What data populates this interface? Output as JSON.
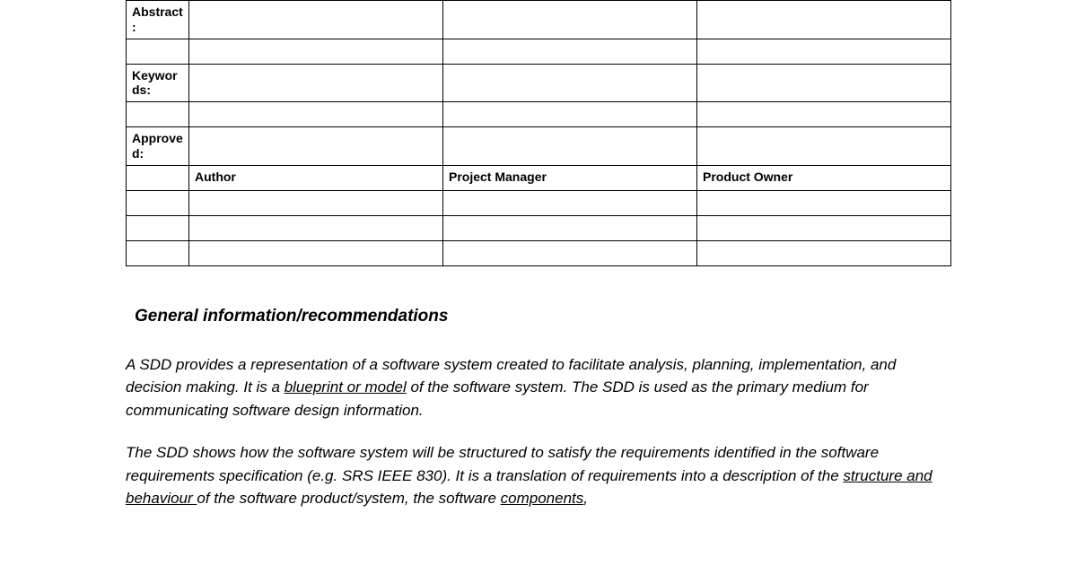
{
  "table": {
    "labels": {
      "abstract": "Abstract:",
      "keywords": "Keywords:",
      "approved": "Approved:"
    },
    "roleHeaders": {
      "author": "Author",
      "projectManager": "Project Manager",
      "productOwner": "Product Owner"
    },
    "styling": {
      "borderColor": "#000000",
      "fontSize": 14,
      "labelFontWeight": "bold",
      "cellHeight": 28
    }
  },
  "section": {
    "heading": "General information/recommendations",
    "paragraphs": {
      "p1": {
        "parts": [
          {
            "text": "A SDD provides a representation of a software system created to facilitate analysis, planning, implementation, and decision making. It is a ",
            "underline": false
          },
          {
            "text": "blueprint or model",
            "underline": true
          },
          {
            "text": " of the software system. The SDD is used as the primary medium for communicating software design information.",
            "underline": false
          }
        ]
      },
      "p2": {
        "parts": [
          {
            "text": "The SDD shows how the software system will be structured to satisfy the requirements identified in the software requirements specification (e.g. SRS IEEE 830). It is a translation of requirements into a description of the ",
            "underline": false
          },
          {
            "text": "structure and behaviour ",
            "underline": true
          },
          {
            "text": " of the software product/system, the software ",
            "underline": false
          },
          {
            "text": "components",
            "underline": true
          },
          {
            "text": ",",
            "underline": false
          }
        ]
      }
    },
    "styling": {
      "headingFontSize": 19,
      "bodyFontSize": 17,
      "fontStyle": "italic",
      "textColor": "#000000",
      "backgroundColor": "#ffffff"
    }
  }
}
